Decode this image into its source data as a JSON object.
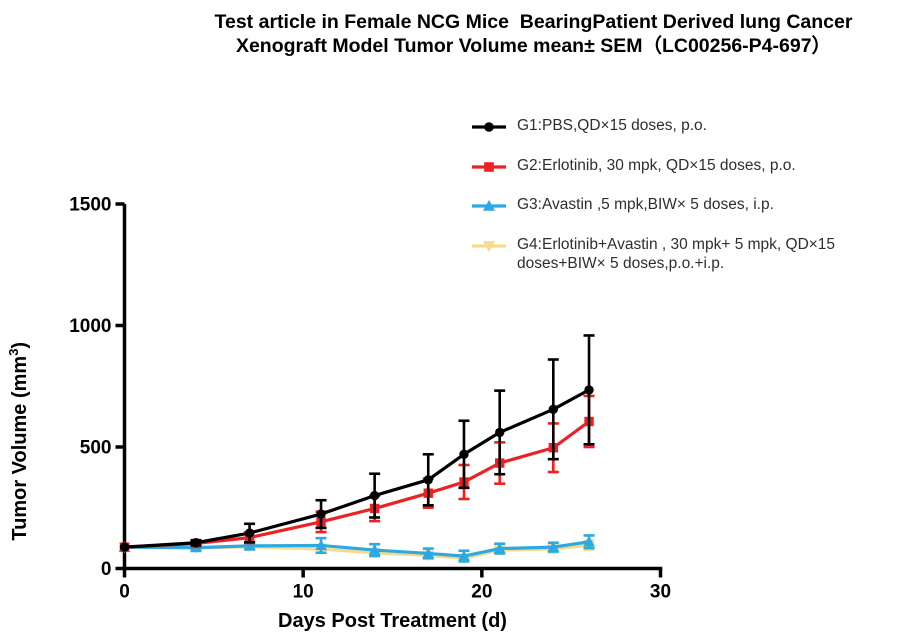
{
  "title": {
    "line1": "Test article in Female NCG Mice  BearingPatient Derived lung Cancer",
    "line2": "Xenograft Model Tumor Volume mean± SEM（LC00256-P4-697）"
  },
  "axes": {
    "x": {
      "label": "Days Post Treatment (d)",
      "ticks": [
        0,
        10,
        20,
        30
      ],
      "range": [
        0,
        30
      ]
    },
    "y": {
      "label": "Tumor Volume (mm³)",
      "ticks": [
        0,
        500,
        1000,
        1500
      ],
      "range": [
        0,
        1500
      ]
    }
  },
  "legend": [
    {
      "id": "G1",
      "marker": "circle",
      "color": "#000000",
      "label": "G1:PBS,QD×15 doses, p.o."
    },
    {
      "id": "G2",
      "marker": "square",
      "color": "#ED2024",
      "label": "G2:Erlotinib, 30 mpk, QD×15 doses, p.o."
    },
    {
      "id": "G3",
      "marker": "triangle-up",
      "color": "#2CA9E1",
      "label": "G3:Avastin ,5 mpk,BIW× 5 doses, i.p."
    },
    {
      "id": "G4",
      "marker": "triangle-down",
      "color": "#F6D98B",
      "label": "G4:Erlotinib+Avastin , 30 mpk+ 5 mpk, QD×15 doses+BIW× 5 doses,p.o.+i.p."
    }
  ],
  "chart_data": {
    "type": "line",
    "title": "Test article in Female NCG Mice Bearing Patient Derived lung Cancer Xenograft Model Tumor Volume mean± SEM（LC00256-P4-697）",
    "xlabel": "Days Post Treatment (d)",
    "ylabel": "Tumor Volume (mm³)",
    "xlim": [
      0,
      30
    ],
    "ylim": [
      0,
      1500
    ],
    "x": [
      0,
      4,
      7,
      11,
      14,
      17,
      19,
      21,
      24,
      26
    ],
    "series": [
      {
        "name": "G1:PBS,QD×15 doses, p.o.",
        "color": "#000000",
        "marker": "circle",
        "values": [
          88,
          106,
          146,
          224,
          300,
          365,
          470,
          560,
          655,
          735
        ],
        "sem": [
          6,
          10,
          38,
          57,
          90,
          105,
          138,
          172,
          205,
          224
        ]
      },
      {
        "name": "G2:Erlotinib, 30 mpk, QD×15 doses, p.o.",
        "color": "#ED2024",
        "marker": "square",
        "values": [
          88,
          103,
          127,
          192,
          247,
          310,
          356,
          434,
          497,
          605
        ],
        "sem": [
          6,
          10,
          22,
          42,
          52,
          60,
          70,
          85,
          100,
          105
        ]
      },
      {
        "name": "G3:Avastin ,5 mpk,BIW× 5 doses, i.p.",
        "color": "#2CA9E1",
        "marker": "triangle-up",
        "values": [
          88,
          86,
          93,
          95,
          76,
          62,
          51,
          82,
          88,
          110
        ],
        "sem": [
          5,
          12,
          14,
          30,
          24,
          20,
          22,
          20,
          18,
          26
        ]
      },
      {
        "name": "G4:Erlotinib+Avastin , 30 mpk+ 5 mpk, QD×15 doses+BIW× 5 doses,p.o.+i.p.",
        "color": "#F6D98B",
        "marker": "triangle-down",
        "values": [
          88,
          84,
          90,
          80,
          64,
          54,
          42,
          76,
          80,
          96
        ],
        "sem": [
          5,
          9,
          12,
          16,
          14,
          12,
          12,
          14,
          14,
          18
        ]
      }
    ]
  }
}
